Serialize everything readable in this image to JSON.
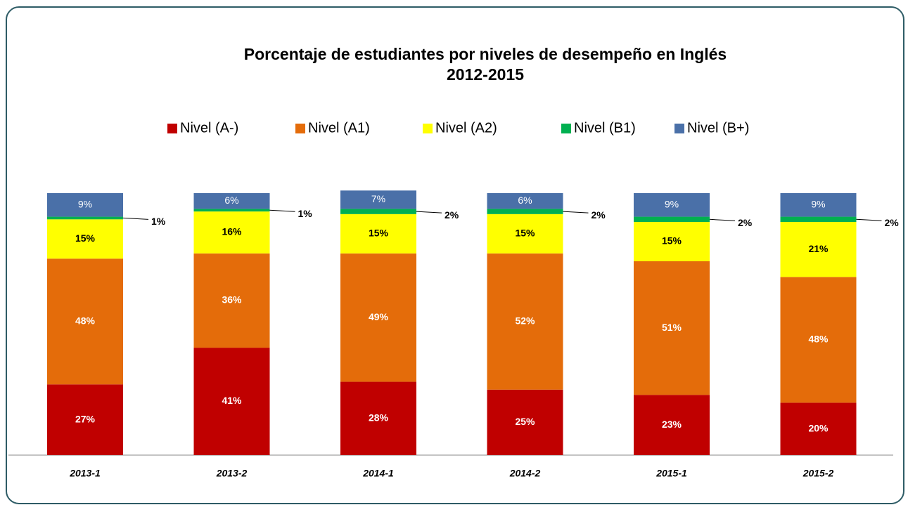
{
  "chart_data": {
    "type": "stacked_bar",
    "title": [
      "Porcentaje de estudiantes por niveles de desempeño en Inglés",
      "2012-2015"
    ],
    "categories": [
      "2013-1",
      "2013-2",
      "2014-1",
      "2014-2",
      "2015-1",
      "2015-2"
    ],
    "ylim": [
      0,
      100
    ],
    "legend": "top",
    "series": [
      {
        "name": "Nivel (A-)",
        "color": "#c00000",
        "values": [
          27,
          41,
          28,
          25,
          23,
          20
        ],
        "value_labels": [
          "27%",
          "41%",
          "28%",
          "25%",
          "23%",
          "20%"
        ]
      },
      {
        "name": "Nivel (A1)",
        "color": "#e46c0a",
        "values": [
          48,
          36,
          49,
          52,
          51,
          48
        ],
        "value_labels": [
          "48%",
          "36%",
          "49%",
          "52%",
          "51%",
          "48%"
        ]
      },
      {
        "name": "Nivel (A2)",
        "color": "#ffff00",
        "values": [
          15,
          16,
          15,
          15,
          15,
          21
        ],
        "value_labels": [
          "15%",
          "16%",
          "15%",
          "15%",
          "15%",
          "21%"
        ]
      },
      {
        "name": "Nivel (B1)",
        "color": "#00b050",
        "values": [
          1,
          1,
          2,
          2,
          2,
          2
        ],
        "value_labels": [
          "1%",
          "1%",
          "2%",
          "2%",
          "2%",
          "2%"
        ]
      },
      {
        "name": "Nivel (B+)",
        "color": "#4a70a8",
        "values": [
          9,
          6,
          7,
          6,
          9,
          9
        ],
        "value_labels": [
          "9%",
          "6%",
          "7%",
          "6%",
          "9%",
          "9%"
        ]
      }
    ]
  }
}
